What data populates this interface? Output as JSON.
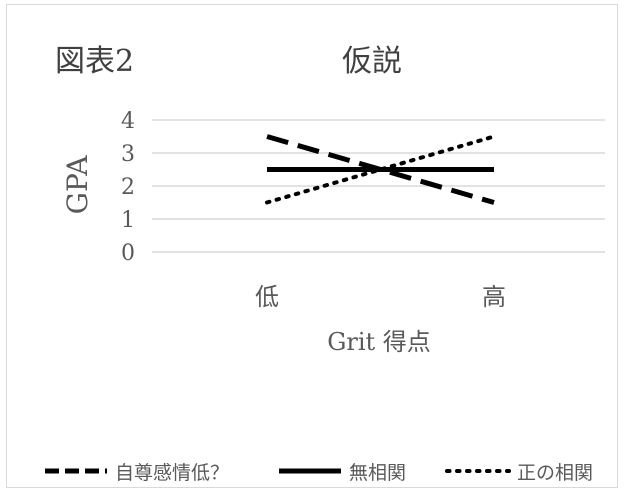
{
  "chart_data": {
    "type": "line",
    "figure_label": "図表2",
    "title": "仮説",
    "xlabel": "Grit 得点",
    "ylabel": "GPA",
    "categories": [
      "低",
      "高"
    ],
    "ylim": [
      0,
      4
    ],
    "yticks": [
      "0",
      "1",
      "2",
      "3",
      "4"
    ],
    "grid": true,
    "legend_position": "bottom",
    "series": [
      {
        "name": "自尊感情低？",
        "values": [
          3.5,
          1.5
        ],
        "style": "dashed",
        "color": "#000000"
      },
      {
        "name": "無相関",
        "values": [
          2.5,
          2.5
        ],
        "style": "solid",
        "color": "#000000"
      },
      {
        "name": "正の相関",
        "values": [
          1.5,
          3.5
        ],
        "style": "dotted",
        "color": "#000000"
      }
    ]
  }
}
